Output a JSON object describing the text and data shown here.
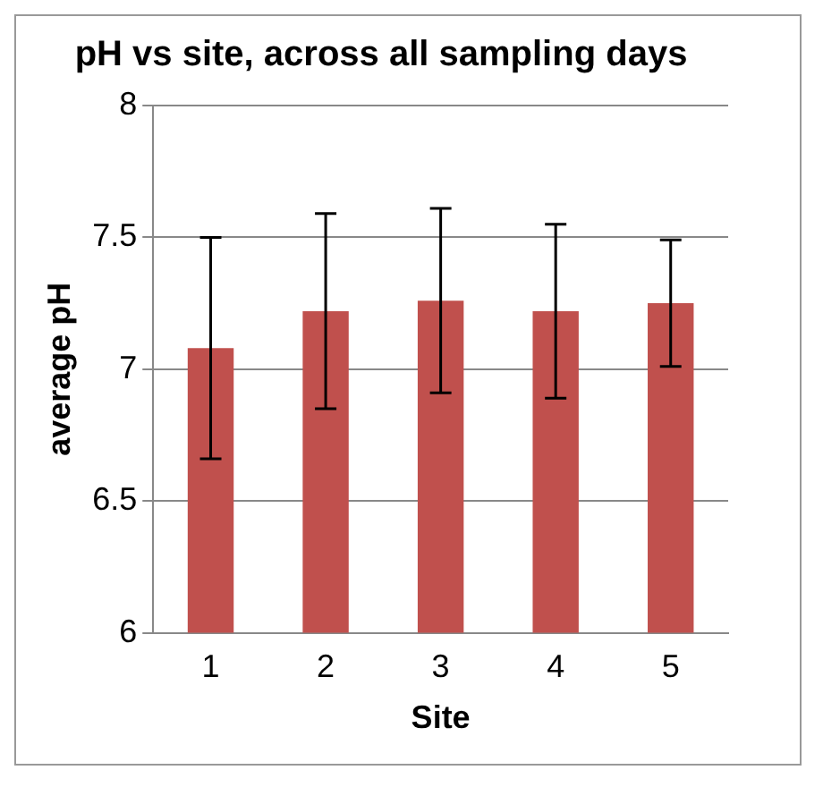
{
  "chart_data": {
    "type": "bar",
    "title": "pH vs site, across all sampling days",
    "xlabel": "Site",
    "ylabel": "average pH",
    "categories": [
      "1",
      "2",
      "3",
      "4",
      "5"
    ],
    "values": [
      7.08,
      7.22,
      7.26,
      7.22,
      7.25
    ],
    "errors": [
      0.42,
      0.37,
      0.35,
      0.33,
      0.24
    ],
    "color": "#c0504d",
    "ylim": [
      6,
      8
    ],
    "yticks": [
      6,
      6.5,
      7,
      7.5,
      8
    ],
    "grid": "y",
    "legend": false
  }
}
